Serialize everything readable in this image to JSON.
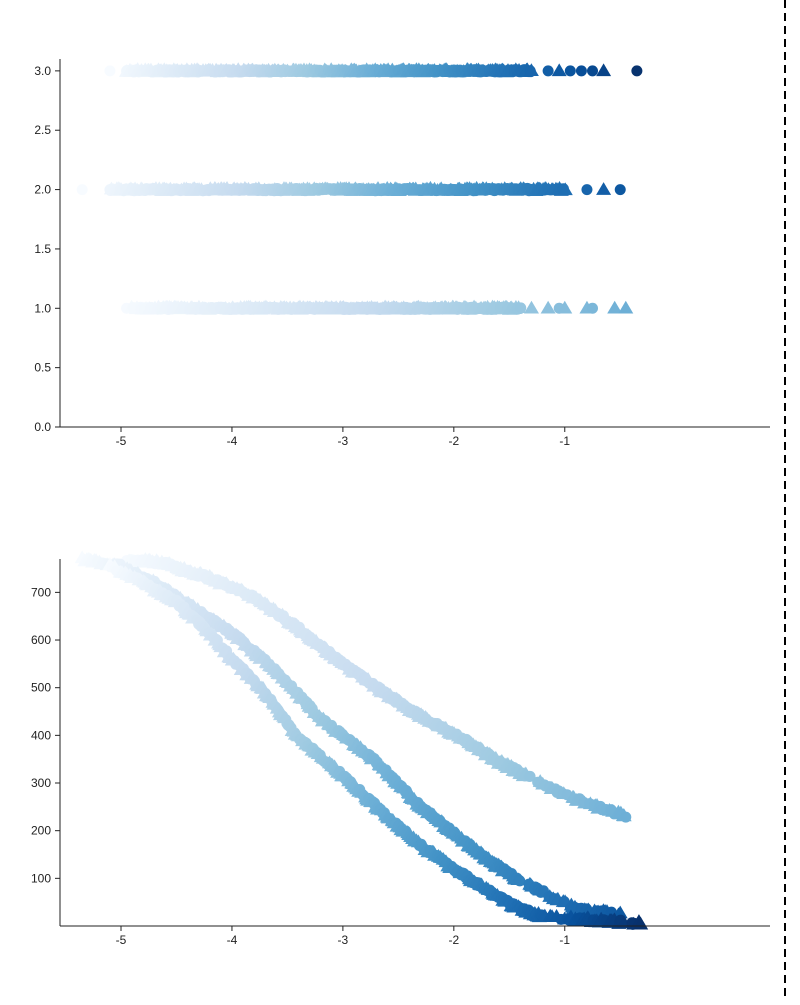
{
  "colors": {
    "axis": "#222222",
    "divider": "#000000",
    "ramp": [
      "#f7fbff",
      "#deebf7",
      "#c6dbef",
      "#9ecae1",
      "#6baed6",
      "#4292c6",
      "#2171b5",
      "#08519c",
      "#08306b"
    ]
  },
  "chart_data": [
    {
      "type": "scatter",
      "title": "",
      "xlabel": "",
      "ylabel": "",
      "xlim": [
        -5.55,
        0.85
      ],
      "ylim": [
        0,
        3.1
      ],
      "x_ticks": [
        -5,
        -4,
        -3,
        -2,
        -1
      ],
      "x_tick_labels": [
        "-5",
        "-4",
        "-3",
        "-2",
        "-1"
      ],
      "y_ticks": [
        0,
        0.5,
        1,
        1.5,
        2,
        2.5,
        3
      ],
      "y_tick_labels": [
        "0.0",
        "0.5",
        "1.0",
        "1.5",
        "2.0",
        "2.5",
        "3.0"
      ],
      "grid": false,
      "legend": "none",
      "marker_shapes": [
        "circle",
        "triangle"
      ],
      "series": [
        {
          "level": 3,
          "x_range": [
            -5.1,
            -0.3
          ],
          "color_scale_x": [
            -5.1,
            -0.3
          ],
          "max_color_index": 8,
          "dense_to": -1.3,
          "sparse_points": [
            -1.15,
            -1.05,
            -0.95,
            -0.85,
            -0.75,
            -0.65,
            -0.35
          ],
          "start_x": [
            -5.1,
            -4.95
          ]
        },
        {
          "level": 2,
          "x_range": [
            -5.35,
            -0.5
          ],
          "color_scale_x": [
            -5.35,
            -0.35
          ],
          "max_color_index": 7,
          "dense_to": -1.0,
          "sparse_points": [
            -0.8,
            -0.65,
            -0.5
          ],
          "start_x": [
            -5.35,
            -5.1
          ]
        },
        {
          "level": 1,
          "x_range": [
            -4.95,
            -0.45
          ],
          "color_scale_x": [
            -5.0,
            -0.4
          ],
          "max_color_index": 4,
          "dense_to": -1.4,
          "sparse_points": [
            -1.3,
            -1.15,
            -1.05,
            -1.0,
            -0.8,
            -0.75,
            -0.55,
            -0.45
          ],
          "start_x": [
            -4.95,
            -4.9
          ]
        }
      ]
    },
    {
      "type": "scatter",
      "title": "",
      "xlabel": "",
      "ylabel": "",
      "xlim": [
        -5.55,
        0.85
      ],
      "ylim": [
        770,
        0
      ],
      "y_reversed": true,
      "x_ticks": [
        -5,
        -4,
        -3,
        -2,
        -1
      ],
      "x_tick_labels": [
        "-5",
        "-4",
        "-3",
        "-2",
        "-1"
      ],
      "y_ticks": [
        100,
        200,
        300,
        400,
        500,
        600,
        700
      ],
      "y_tick_labels": [
        "100",
        "200",
        "300",
        "400",
        "500",
        "600",
        "700"
      ],
      "grid": false,
      "legend": "none",
      "marker_shapes": [
        "circle",
        "triangle"
      ],
      "series": [
        {
          "group": 3,
          "x_range": [
            -5.1,
            -0.3
          ],
          "rank_knots": [
            [
              -5.1,
              755
            ],
            [
              -4.8,
              720
            ],
            [
              -4.5,
              680
            ],
            [
              -4.2,
              615
            ],
            [
              -4.0,
              560
            ],
            [
              -3.7,
              490
            ],
            [
              -3.4,
              395
            ],
            [
              -3.0,
              315
            ],
            [
              -2.6,
              230
            ],
            [
              -2.3,
              170
            ],
            [
              -2.0,
              120
            ],
            [
              -1.7,
              75
            ],
            [
              -1.4,
              35
            ],
            [
              -1.2,
              20
            ],
            [
              -0.3,
              5
            ]
          ],
          "color_scale_x": [
            -5.1,
            -0.3
          ],
          "max_color_index": 8
        },
        {
          "group": 2,
          "x_range": [
            -5.35,
            -0.5
          ],
          "rank_knots": [
            [
              -5.35,
              770
            ],
            [
              -5.0,
              755
            ],
            [
              -4.7,
              720
            ],
            [
              -4.4,
              675
            ],
            [
              -4.0,
              615
            ],
            [
              -3.6,
              535
            ],
            [
              -3.2,
              435
            ],
            [
              -2.7,
              345
            ],
            [
              -2.3,
              250
            ],
            [
              -2.0,
              195
            ],
            [
              -1.7,
              140
            ],
            [
              -1.4,
              95
            ],
            [
              -1.1,
              60
            ],
            [
              -0.9,
              35
            ],
            [
              -0.5,
              25
            ]
          ],
          "color_scale_x": [
            -5.35,
            -0.35
          ],
          "max_color_index": 7
        },
        {
          "group": 1,
          "x_range": [
            -4.95,
            -0.45
          ],
          "rank_knots": [
            [
              -4.95,
              770
            ],
            [
              -4.6,
              760
            ],
            [
              -4.2,
              730
            ],
            [
              -3.8,
              690
            ],
            [
              -3.4,
              625
            ],
            [
              -3.0,
              550
            ],
            [
              -2.6,
              485
            ],
            [
              -2.3,
              440
            ],
            [
              -1.9,
              390
            ],
            [
              -1.6,
              345
            ],
            [
              -1.3,
              310
            ],
            [
              -1.0,
              275
            ],
            [
              -0.7,
              250
            ],
            [
              -0.45,
              230
            ]
          ],
          "color_scale_x": [
            -5.0,
            -0.4
          ],
          "max_color_index": 4
        }
      ]
    }
  ]
}
